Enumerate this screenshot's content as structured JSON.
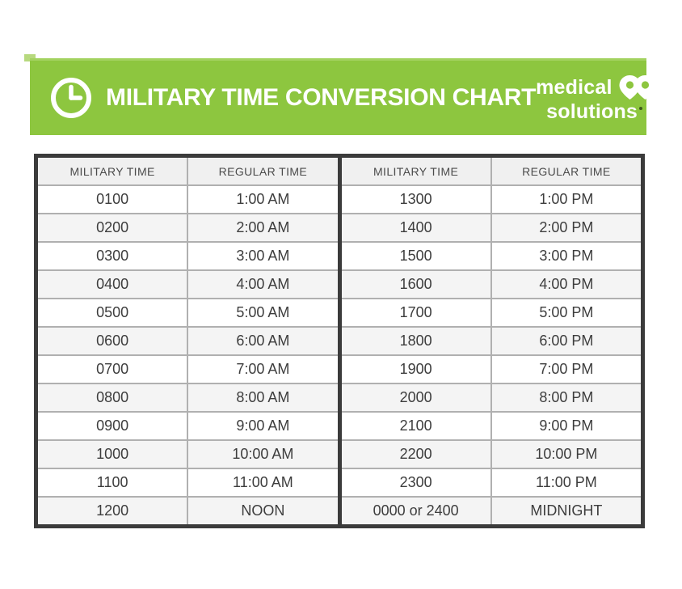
{
  "banner": {
    "title": "MILITARY TIME CONVERSION CHART",
    "logo": {
      "line1": "medical",
      "line2": "solutions"
    },
    "colors": {
      "green": "#8dc63f",
      "text": "#ffffff"
    }
  },
  "chart_data": {
    "type": "table",
    "title": "MILITARY TIME CONVERSION CHART",
    "columns": [
      "MILITARY TIME",
      "REGULAR TIME",
      "MILITARY TIME",
      "REGULAR TIME"
    ],
    "rows": [
      [
        "0100",
        "1:00 AM",
        "1300",
        "1:00 PM"
      ],
      [
        "0200",
        "2:00 AM",
        "1400",
        "2:00 PM"
      ],
      [
        "0300",
        "3:00 AM",
        "1500",
        "3:00 PM"
      ],
      [
        "0400",
        "4:00 AM",
        "1600",
        "4:00 PM"
      ],
      [
        "0500",
        "5:00 AM",
        "1700",
        "5:00 PM"
      ],
      [
        "0600",
        "6:00 AM",
        "1800",
        "6:00 PM"
      ],
      [
        "0700",
        "7:00 AM",
        "1900",
        "7:00 PM"
      ],
      [
        "0800",
        "8:00 AM",
        "2000",
        "8:00 PM"
      ],
      [
        "0900",
        "9:00 AM",
        "2100",
        "9:00 PM"
      ],
      [
        "1000",
        "10:00 AM",
        "2200",
        "10:00 PM"
      ],
      [
        "1100",
        "11:00 AM",
        "2300",
        "11:00 PM"
      ],
      [
        "1200",
        "NOON",
        "0000 or 2400",
        "MIDNIGHT"
      ]
    ],
    "layout": {
      "stripe_color": "#f4f4f4",
      "header_bg": "#f0f0f0",
      "outer_border_color": "#3b3b3b",
      "grid_line_color": "#b0b0b0"
    }
  }
}
